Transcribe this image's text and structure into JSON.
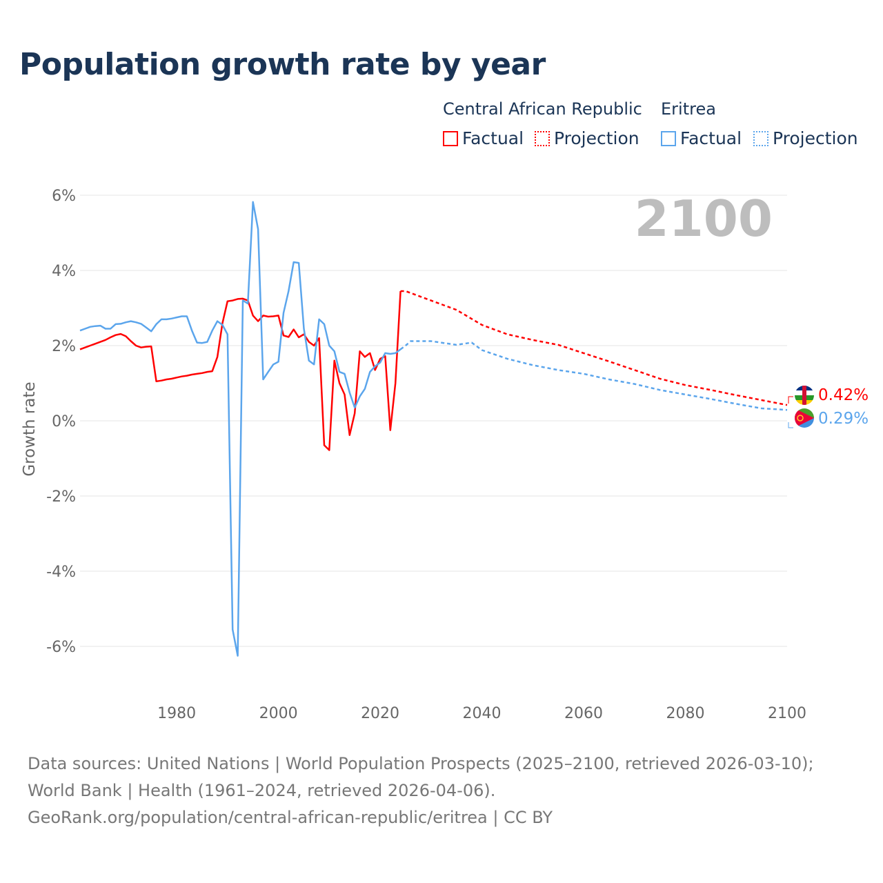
{
  "title": "Population growth rate by year",
  "legend": {
    "groups": [
      {
        "country": "Central African Republic",
        "factual": "Factual",
        "projection": "Projection",
        "color": "#ff0000"
      },
      {
        "country": "Eritrea",
        "factual": "Factual",
        "projection": "Projection",
        "color": "#5ba5ec"
      }
    ]
  },
  "year_watermark": "2100",
  "end_labels": {
    "car": "0.42%",
    "eritrea": "0.29%"
  },
  "footer": {
    "sources": "Data sources: United Nations | World Population Prospects (2025–2100, retrieved 2026-03-10); World Bank | Health (1961–2024, retrieved 2026-04-06).",
    "credit": "GeoRank.org/population/central-african-republic/eritrea | CC BY"
  },
  "chart_data": {
    "type": "line",
    "title": "Population growth rate by year",
    "xlabel": "",
    "ylabel": "Growth rate",
    "xlim": [
      1961,
      2100
    ],
    "ylim": [
      -6.5,
      6.5
    ],
    "x_ticks": [
      1980,
      2000,
      2020,
      2040,
      2060,
      2080,
      2100
    ],
    "y_ticks": [
      6,
      4,
      2,
      0,
      -2,
      -4,
      -6
    ],
    "y_tick_labels": [
      "6%",
      "4%",
      "2%",
      "0%",
      "-2%",
      "-4%",
      "-6%"
    ],
    "grid": true,
    "legend_position": "top-right",
    "series": [
      {
        "name": "Central African Republic – Factual",
        "color": "#ff0000",
        "dashed": false,
        "x": [
          1961,
          1962,
          1963,
          1964,
          1965,
          1966,
          1967,
          1968,
          1969,
          1970,
          1971,
          1972,
          1973,
          1974,
          1975,
          1976,
          1977,
          1978,
          1979,
          1980,
          1981,
          1982,
          1983,
          1984,
          1985,
          1986,
          1987,
          1988,
          1989,
          1990,
          1991,
          1992,
          1993,
          1994,
          1995,
          1996,
          1997,
          1998,
          1999,
          2000,
          2001,
          2002,
          2003,
          2004,
          2005,
          2006,
          2007,
          2008,
          2009,
          2010,
          2011,
          2012,
          2013,
          2014,
          2015,
          2016,
          2017,
          2018,
          2019,
          2020,
          2021,
          2022,
          2023,
          2024
        ],
        "y": [
          1.9,
          1.95,
          2.0,
          2.05,
          2.1,
          2.15,
          2.22,
          2.28,
          2.31,
          2.25,
          2.12,
          2.0,
          1.95,
          1.97,
          1.98,
          1.05,
          1.07,
          1.1,
          1.12,
          1.15,
          1.18,
          1.2,
          1.23,
          1.25,
          1.27,
          1.3,
          1.32,
          1.7,
          2.6,
          3.18,
          3.2,
          3.24,
          3.25,
          3.2,
          2.8,
          2.65,
          2.8,
          2.77,
          2.78,
          2.8,
          2.27,
          2.23,
          2.43,
          2.22,
          2.3,
          2.1,
          2.0,
          2.2,
          -0.65,
          -0.78,
          1.6,
          1.0,
          0.7,
          -0.38,
          0.2,
          1.85,
          1.7,
          1.8,
          1.35,
          1.65,
          1.72,
          -0.25,
          1.0,
          3.45
        ]
      },
      {
        "name": "Central African Republic – Projection",
        "color": "#ff0000",
        "dashed": true,
        "x": [
          2024,
          2025,
          2030,
          2035,
          2040,
          2045,
          2050,
          2055,
          2060,
          2065,
          2070,
          2075,
          2080,
          2085,
          2090,
          2095,
          2100
        ],
        "y": [
          3.45,
          3.45,
          3.2,
          2.95,
          2.55,
          2.3,
          2.15,
          2.02,
          1.8,
          1.58,
          1.35,
          1.12,
          0.95,
          0.82,
          0.68,
          0.55,
          0.42
        ]
      },
      {
        "name": "Eritrea – Factual",
        "color": "#5ba5ec",
        "dashed": false,
        "x": [
          1961,
          1962,
          1963,
          1964,
          1965,
          1966,
          1967,
          1968,
          1969,
          1970,
          1971,
          1972,
          1973,
          1974,
          1975,
          1976,
          1977,
          1978,
          1979,
          1980,
          1981,
          1982,
          1983,
          1984,
          1985,
          1986,
          1987,
          1988,
          1989,
          1990,
          1991,
          1992,
          1993,
          1994,
          1995,
          1996,
          1997,
          1998,
          1999,
          2000,
          2001,
          2002,
          2003,
          2004,
          2005,
          2006,
          2007,
          2008,
          2009,
          2010,
          2011,
          2012,
          2013,
          2014,
          2015,
          2016,
          2017,
          2018,
          2019,
          2020,
          2021,
          2022,
          2023,
          2024
        ],
        "y": [
          2.4,
          2.45,
          2.5,
          2.52,
          2.53,
          2.45,
          2.45,
          2.57,
          2.58,
          2.62,
          2.65,
          2.62,
          2.58,
          2.48,
          2.38,
          2.57,
          2.7,
          2.7,
          2.72,
          2.75,
          2.78,
          2.78,
          2.4,
          2.08,
          2.07,
          2.1,
          2.4,
          2.65,
          2.55,
          2.3,
          -5.55,
          -6.25,
          3.2,
          3.12,
          5.82,
          5.1,
          1.1,
          1.3,
          1.5,
          1.57,
          2.87,
          3.45,
          4.22,
          4.2,
          2.45,
          1.6,
          1.5,
          2.7,
          2.57,
          2.0,
          1.85,
          1.3,
          1.25,
          0.75,
          0.35,
          0.65,
          0.85,
          1.3,
          1.45,
          1.55,
          1.8,
          1.78,
          1.8,
          1.9
        ]
      },
      {
        "name": "Eritrea – Projection",
        "color": "#5ba5ec",
        "dashed": true,
        "x": [
          2024,
          2025,
          2026,
          2030,
          2035,
          2038,
          2040,
          2045,
          2050,
          2055,
          2060,
          2065,
          2070,
          2075,
          2080,
          2085,
          2090,
          2095,
          2100
        ],
        "y": [
          1.9,
          2.0,
          2.12,
          2.12,
          2.02,
          2.08,
          1.88,
          1.65,
          1.48,
          1.35,
          1.25,
          1.1,
          0.98,
          0.82,
          0.7,
          0.58,
          0.45,
          0.33,
          0.29
        ]
      }
    ]
  }
}
